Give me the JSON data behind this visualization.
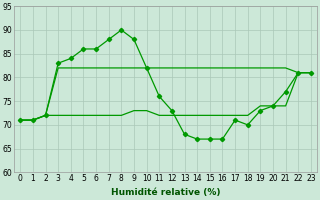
{
  "xlabel": "Humidité relative (%)",
  "background_color": "#cce8d8",
  "grid_color": "#aac8b8",
  "line_color": "#009900",
  "xlim_min": -0.5,
  "xlim_max": 23.5,
  "ylim": [
    60,
    95
  ],
  "yticks": [
    60,
    65,
    70,
    75,
    80,
    85,
    90,
    95
  ],
  "xticks": [
    0,
    1,
    2,
    3,
    4,
    5,
    6,
    7,
    8,
    9,
    10,
    11,
    12,
    13,
    14,
    15,
    16,
    17,
    18,
    19,
    20,
    21,
    22,
    23
  ],
  "series_main_x": [
    0,
    1,
    2,
    3,
    4,
    5,
    6,
    7,
    8,
    9,
    10,
    11,
    12,
    13,
    14,
    15,
    16,
    17,
    18,
    19,
    20,
    21,
    22,
    23
  ],
  "series_main_y": [
    71,
    71,
    72,
    83,
    84,
    86,
    86,
    88,
    90,
    88,
    82,
    76,
    73,
    68,
    67,
    67,
    67,
    71,
    70,
    73,
    74,
    77,
    81,
    81
  ],
  "series_top_x": [
    0,
    1,
    2,
    3,
    4,
    5,
    6,
    7,
    8,
    9,
    10,
    11,
    12,
    13,
    14,
    15,
    16,
    17,
    18,
    19,
    20,
    21,
    22,
    23
  ],
  "series_top_y": [
    71,
    71,
    72,
    82,
    82,
    82,
    82,
    82,
    82,
    82,
    82,
    82,
    82,
    82,
    82,
    82,
    82,
    82,
    82,
    82,
    82,
    82,
    81,
    81
  ],
  "series_bot_x": [
    0,
    1,
    2,
    3,
    4,
    5,
    6,
    7,
    8,
    9,
    10,
    11,
    12,
    13,
    14,
    15,
    16,
    17,
    18,
    19,
    20,
    21,
    22,
    23
  ],
  "series_bot_y": [
    71,
    71,
    72,
    72,
    72,
    72,
    72,
    72,
    72,
    73,
    73,
    72,
    72,
    72,
    72,
    72,
    72,
    72,
    72,
    74,
    74,
    74,
    81,
    81
  ],
  "xlabel_fontsize": 6.5,
  "tick_fontsize": 5.5,
  "linewidth": 0.9,
  "marker_size": 2.2
}
